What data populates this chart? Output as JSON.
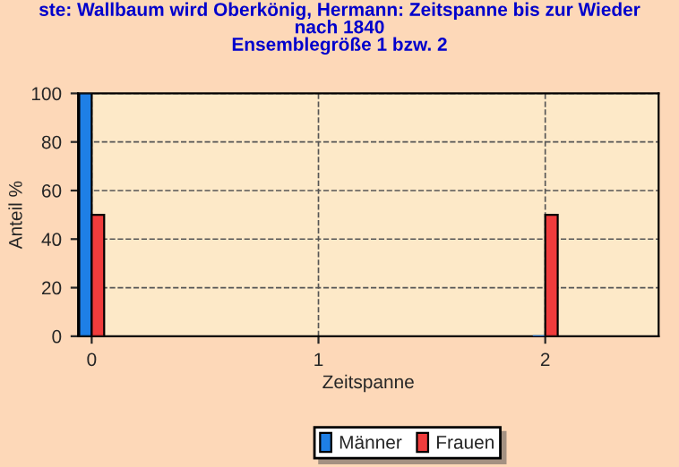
{
  "chart_data": {
    "type": "bar",
    "title": "ste: Wallbaum wird Oberkönig, Hermann: Zeitspanne bis zur Wieder\nnach 1840\nEnsemblegröße 1 bzw. 2",
    "xlabel": "Zeitspanne",
    "ylabel": "Anteil %",
    "x": [
      0,
      2
    ],
    "series": [
      {
        "name": "Männer",
        "color": "#1e7fe6",
        "values": [
          100,
          0
        ]
      },
      {
        "name": "Frauen",
        "color": "#f03c3c",
        "values": [
          50,
          50
        ]
      }
    ],
    "xlim": [
      -0.06,
      2.5
    ],
    "xticks": [
      0,
      1,
      2
    ],
    "ylim": [
      0,
      100
    ],
    "yticks": [
      0,
      20,
      40,
      60,
      80,
      100
    ],
    "grid": true,
    "legend": "bottom"
  }
}
